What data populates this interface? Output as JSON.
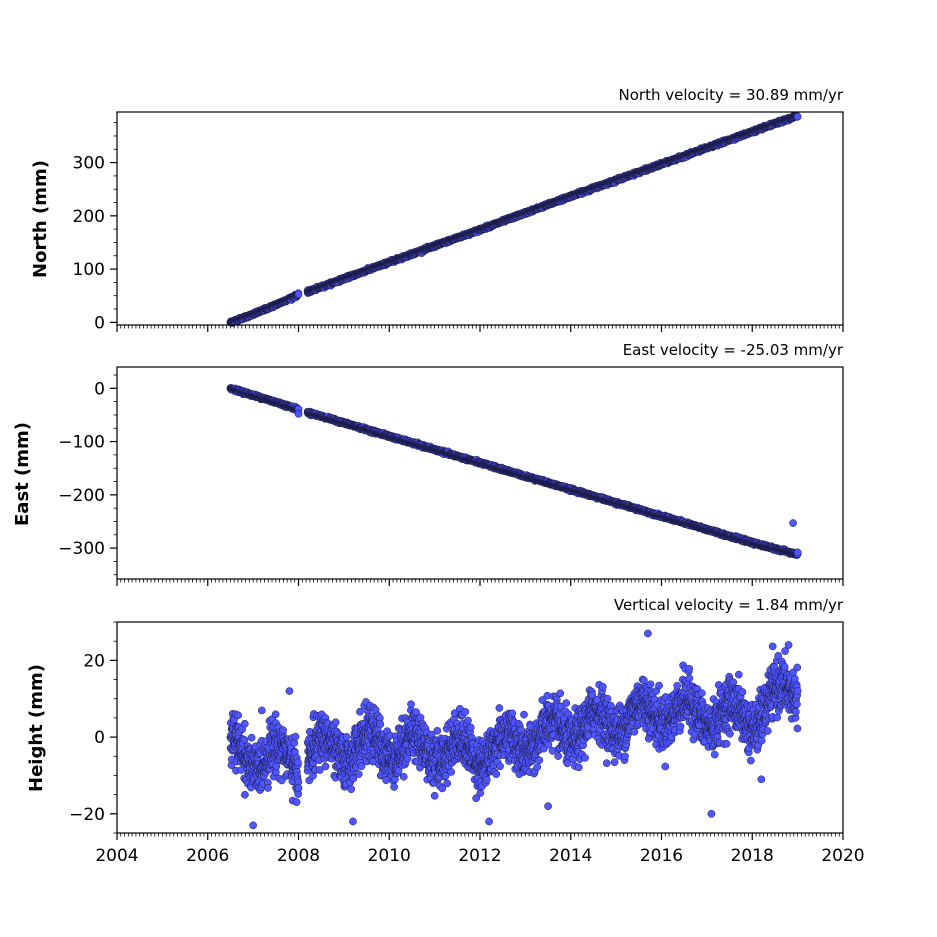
{
  "chart_data": [
    {
      "type": "scatter",
      "title": "North velocity = 30.89 mm/yr",
      "xlabel": "",
      "ylabel": "North (mm)",
      "xlim": [
        2004,
        2020
      ],
      "ylim": [
        -5,
        395
      ],
      "yticks": [
        "0",
        "100",
        "200",
        "300"
      ],
      "x_tick_labels_visible": false,
      "segments": [
        {
          "x": [
            2006.5,
            2007.0,
            2007.5,
            2008.0
          ],
          "y": [
            0,
            15,
            33,
            52
          ]
        },
        {
          "x": [
            2008.2,
            2010.0,
            2012.0,
            2014.0,
            2016.0,
            2018.0,
            2019.0
          ],
          "y": [
            57,
            113,
            174,
            237,
            297,
            358,
            388
          ]
        }
      ],
      "noise": 2,
      "outliers": [],
      "grid": false,
      "point_color": "#4f55ff"
    },
    {
      "type": "scatter",
      "title": "East velocity = -25.03 mm/yr",
      "xlabel": "",
      "ylabel": "East (mm)",
      "xlim": [
        2004,
        2020
      ],
      "ylim": [
        -358,
        40
      ],
      "yticks": [
        "0",
        "−100",
        "−200",
        "−300"
      ],
      "x_tick_labels_visible": false,
      "segments": [
        {
          "x": [
            2006.5,
            2007.0,
            2007.5,
            2008.0
          ],
          "y": [
            0,
            -13,
            -26,
            -40
          ]
        },
        {
          "x": [
            2008.2,
            2010.0,
            2012.0,
            2014.0,
            2016.0,
            2018.0,
            2019.0
          ],
          "y": [
            -45,
            -90,
            -140,
            -190,
            -240,
            -290,
            -312
          ]
        }
      ],
      "noise": 2,
      "outliers": [
        {
          "x": 2018.9,
          "y": -253
        },
        {
          "x": 2019.0,
          "y": -308
        },
        {
          "x": 2008.0,
          "y": -48
        }
      ],
      "grid": false,
      "point_color": "#4f55ff"
    },
    {
      "type": "scatter",
      "title": "Vertical velocity = 1.84 mm/yr",
      "xlabel": "",
      "ylabel": "Height (mm)",
      "xlim": [
        2004,
        2020
      ],
      "ylim": [
        -25,
        30
      ],
      "yticks": [
        "−20",
        "0",
        "20"
      ],
      "x_tick_labels_visible": true,
      "xticks": [
        "2004",
        "2006",
        "2008",
        "2010",
        "2012",
        "2014",
        "2016",
        "2018",
        "2020"
      ],
      "segments": [
        {
          "x": [
            2006.5,
            2007.0,
            2007.5,
            2008.0
          ],
          "y": [
            -4,
            -5,
            -5,
            -6
          ]
        },
        {
          "x": [
            2008.2,
            2010.0,
            2012.0,
            2014.0,
            2016.0,
            2018.0,
            2019.0
          ],
          "y": [
            -4,
            -2,
            -4,
            2,
            7,
            5,
            14
          ]
        }
      ],
      "noise": 6,
      "outliers": [
        {
          "x": 2015.7,
          "y": 27
        },
        {
          "x": 2018.8,
          "y": 24
        },
        {
          "x": 2007.8,
          "y": 12
        },
        {
          "x": 2017.1,
          "y": -20
        },
        {
          "x": 2018.2,
          "y": -11
        },
        {
          "x": 2013.5,
          "y": -18
        },
        {
          "x": 2007.0,
          "y": -23
        },
        {
          "x": 2009.2,
          "y": -22
        },
        {
          "x": 2012.2,
          "y": -22
        }
      ],
      "grid": false,
      "point_color": "#4f55ff"
    }
  ]
}
